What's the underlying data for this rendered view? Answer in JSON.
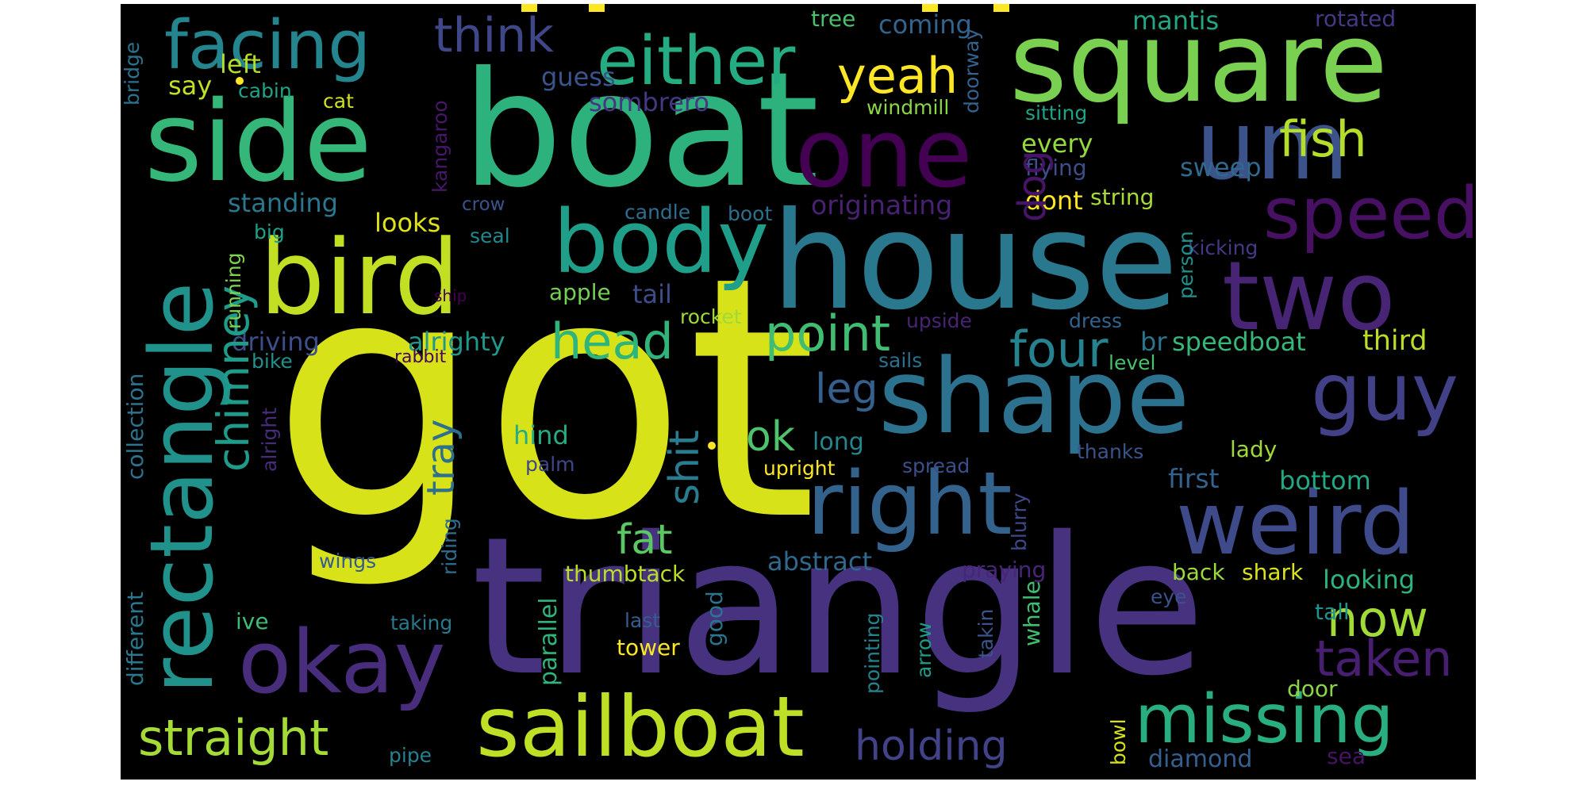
{
  "words": [
    {
      "text": "got",
      "color": "#d8e219"
    },
    {
      "text": "triangle",
      "color": "#46327e"
    },
    {
      "text": "boat",
      "color": "#2db27d"
    },
    {
      "text": "house",
      "color": "#2a788e"
    },
    {
      "text": "side",
      "color": "#35b779"
    },
    {
      "text": "square",
      "color": "#7ad151"
    },
    {
      "text": "shape",
      "color": "#2c728e"
    },
    {
      "text": "bird",
      "color": "#c2df23"
    },
    {
      "text": "rectangle",
      "color": "#21918c"
    },
    {
      "text": "sailboat",
      "color": "#bddf26"
    },
    {
      "text": "two",
      "color": "#482475"
    },
    {
      "text": "one",
      "color": "#440154"
    },
    {
      "text": "um",
      "color": "#3b528b"
    },
    {
      "text": "right",
      "color": "#33638d"
    },
    {
      "text": "weird",
      "color": "#3e4a89"
    },
    {
      "text": "okay",
      "color": "#472d7b"
    },
    {
      "text": "body",
      "color": "#1f9e89"
    },
    {
      "text": "missing",
      "color": "#29af7f"
    },
    {
      "text": "guy",
      "color": "#424086"
    },
    {
      "text": "speed",
      "color": "#471063"
    },
    {
      "text": "either",
      "color": "#25ac82"
    },
    {
      "text": "facing",
      "color": "#25858e"
    },
    {
      "text": "straight",
      "color": "#a5db36"
    },
    {
      "text": "fish",
      "color": "#b5de2b"
    },
    {
      "text": "think",
      "color": "#3f4788"
    },
    {
      "text": "yeah",
      "color": "#fde725"
    },
    {
      "text": "four",
      "color": "#26828e"
    },
    {
      "text": "head",
      "color": "#2fb47c"
    },
    {
      "text": "point",
      "color": "#40bd72"
    },
    {
      "text": "now",
      "color": "#a2da37"
    },
    {
      "text": "taken",
      "color": "#481f70"
    },
    {
      "text": "holding",
      "color": "#414287"
    },
    {
      "text": "chimney",
      "color": "#1e9b8a"
    },
    {
      "text": "shit",
      "color": "#287c8e"
    },
    {
      "text": "fat",
      "color": "#5cc863"
    },
    {
      "text": "ok",
      "color": "#4ec36b"
    },
    {
      "text": "leg",
      "color": "#355f8d"
    },
    {
      "text": "dog",
      "color": "#481467"
    },
    {
      "text": "tray",
      "color": "#2e6f8e"
    },
    {
      "text": "guess",
      "color": "#3a548c"
    },
    {
      "text": "coming",
      "color": "#32658e"
    },
    {
      "text": "tree",
      "color": "#4ac16d"
    },
    {
      "text": "mantis",
      "color": "#22a785"
    },
    {
      "text": "rotated",
      "color": "#443983"
    },
    {
      "text": "bridge",
      "color": "#2c728e"
    },
    {
      "text": "say",
      "color": "#c0df25"
    },
    {
      "text": "left",
      "color": "#b2dd2d"
    },
    {
      "text": "cabin",
      "color": "#20a486"
    },
    {
      "text": "cat",
      "color": "#d0e11c"
    },
    {
      "text": "sombrero",
      "color": "#453781"
    },
    {
      "text": "windmill",
      "color": "#8bd646"
    },
    {
      "text": "doorway",
      "color": "#34618d"
    },
    {
      "text": "sitting",
      "color": "#1fa287"
    },
    {
      "text": "kangaroo",
      "color": "#481769"
    },
    {
      "text": "every",
      "color": "#95d840"
    },
    {
      "text": "flying",
      "color": "#3d4e8a"
    },
    {
      "text": "sweep",
      "color": "#31688e"
    },
    {
      "text": "standing",
      "color": "#2a788e"
    },
    {
      "text": "originating",
      "color": "#482173"
    },
    {
      "text": "dont",
      "color": "#fde725"
    },
    {
      "text": "string",
      "color": "#a8db34"
    },
    {
      "text": "looks",
      "color": "#dde318"
    },
    {
      "text": "crow",
      "color": "#3b528b"
    },
    {
      "text": "candle",
      "color": "#2e6e8e"
    },
    {
      "text": "boot",
      "color": "#2d708e"
    },
    {
      "text": "big",
      "color": "#1fa188"
    },
    {
      "text": "seal",
      "color": "#23888e"
    },
    {
      "text": "person",
      "color": "#20928c"
    },
    {
      "text": "kicking",
      "color": "#443a83"
    },
    {
      "text": "running",
      "color": "#7fd34e"
    },
    {
      "text": "ship",
      "color": "#440154"
    },
    {
      "text": "apple",
      "color": "#75d054"
    },
    {
      "text": "tail",
      "color": "#3e4c8a"
    },
    {
      "text": "rocket",
      "color": "#a0da39"
    },
    {
      "text": "upside",
      "color": "#482475"
    },
    {
      "text": "dress",
      "color": "#33638d"
    },
    {
      "text": "collection",
      "color": "#2c738e"
    },
    {
      "text": "driving",
      "color": "#3d4e8a"
    },
    {
      "text": "alrighty",
      "color": "#1f988b"
    },
    {
      "text": "br",
      "color": "#2a768e"
    },
    {
      "text": "speedboat",
      "color": "#35b779"
    },
    {
      "text": "third",
      "color": "#bade28"
    },
    {
      "text": "bike",
      "color": "#21918c"
    },
    {
      "text": "rabbit",
      "color": "#46085c"
    },
    {
      "text": "sails",
      "color": "#2d708e"
    },
    {
      "text": "level",
      "color": "#4ac16d"
    },
    {
      "text": "alright",
      "color": "#472c7a"
    },
    {
      "text": "hind",
      "color": "#25ac82"
    },
    {
      "text": "long",
      "color": "#24868e"
    },
    {
      "text": "thanks",
      "color": "#3b528b"
    },
    {
      "text": "lady",
      "color": "#9fda3a"
    },
    {
      "text": "palm",
      "color": "#3f4788"
    },
    {
      "text": "upright",
      "color": "#fde725"
    },
    {
      "text": "spread",
      "color": "#3c4f8a"
    },
    {
      "text": "first",
      "color": "#33638d"
    },
    {
      "text": "bottom",
      "color": "#22a884"
    },
    {
      "text": "blurry",
      "color": "#3e4989"
    },
    {
      "text": "different",
      "color": "#2a788e"
    },
    {
      "text": "riding",
      "color": "#2e6e8e"
    },
    {
      "text": "abstract",
      "color": "#31688e"
    },
    {
      "text": "wings",
      "color": "#365c8d"
    },
    {
      "text": "praying",
      "color": "#482677"
    },
    {
      "text": "back",
      "color": "#9bd93c"
    },
    {
      "text": "shark",
      "color": "#dae319"
    },
    {
      "text": "looking",
      "color": "#2eb37c"
    },
    {
      "text": "thumbtack",
      "color": "#b8de29"
    },
    {
      "text": "parallel",
      "color": "#2fb47c"
    },
    {
      "text": "eye",
      "color": "#3b528b"
    },
    {
      "text": "good",
      "color": "#2b758e"
    },
    {
      "text": "ive",
      "color": "#3fbc73"
    },
    {
      "text": "taking",
      "color": "#29798e"
    },
    {
      "text": "last",
      "color": "#345f8d"
    },
    {
      "text": "tower",
      "color": "#fde725"
    },
    {
      "text": "pointing",
      "color": "#25838e"
    },
    {
      "text": "arrow",
      "color": "#1e9c89"
    },
    {
      "text": "takin",
      "color": "#3a548c"
    },
    {
      "text": "whale",
      "color": "#40bd72"
    },
    {
      "text": "tall",
      "color": "#21918c"
    },
    {
      "text": "door",
      "color": "#8bd646"
    },
    {
      "text": "pipe",
      "color": "#26828e"
    },
    {
      "text": "bowl",
      "color": "#d5e21a"
    },
    {
      "text": "diamond",
      "color": "#355f8d"
    },
    {
      "text": "sea",
      "color": "#471365"
    },
    {
      "text": "dot-1",
      "color": "#fde725"
    },
    {
      "text": "dot-2",
      "color": "#fde725"
    }
  ]
}
